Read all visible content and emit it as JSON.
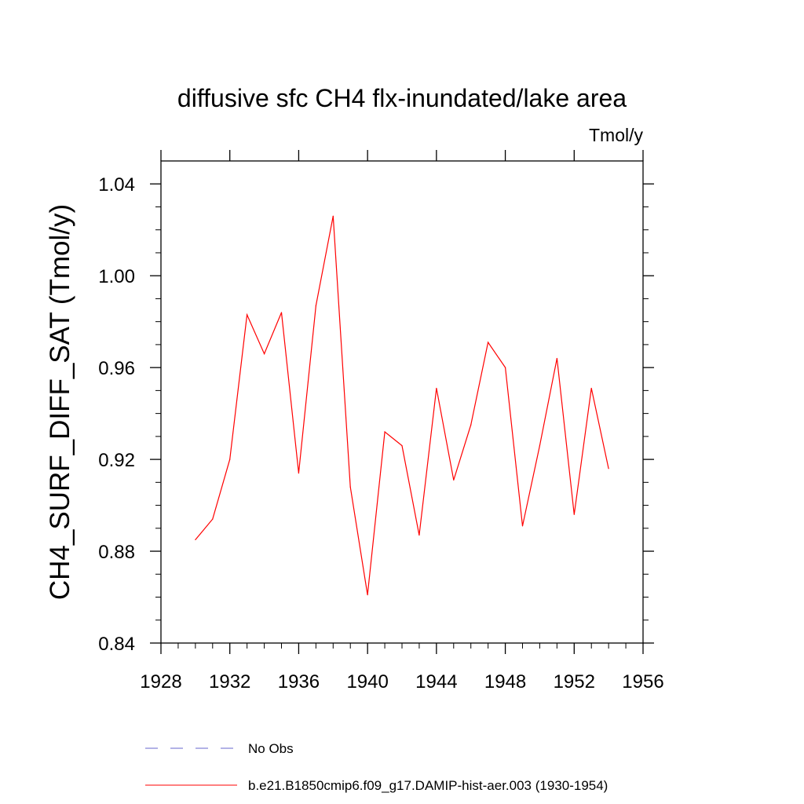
{
  "chart_data": {
    "type": "line",
    "title": "diffusive sfc CH4 flx-inundated/lake area",
    "units_label": "Tmol/y",
    "ylabel": "CH4_SURF_DIFF_SAT  (Tmol/y)",
    "xlabel": "",
    "xlim": [
      1928,
      1956
    ],
    "ylim": [
      0.84,
      1.05
    ],
    "x_ticks": [
      1928,
      1932,
      1936,
      1940,
      1944,
      1948,
      1952,
      1956
    ],
    "y_ticks": [
      0.84,
      0.88,
      0.92,
      0.96,
      1.0,
      1.04
    ],
    "x_tick_labels": [
      "1928",
      "1932",
      "1936",
      "1940",
      "1944",
      "1948",
      "1952",
      "1956"
    ],
    "y_tick_labels": [
      "0.84",
      "0.88",
      "0.92",
      "0.96",
      "1.00",
      "1.04"
    ],
    "grid": false,
    "legend_position": "bottom",
    "series": [
      {
        "name": "b.e21.B1850cmip6.f09_g17.DAMIP-hist-aer.003 (1930-1954)",
        "color": "#ff0000",
        "dash": "solid",
        "x": [
          1930,
          1931,
          1932,
          1933,
          1934,
          1935,
          1936,
          1937,
          1938,
          1939,
          1940,
          1941,
          1942,
          1943,
          1944,
          1945,
          1946,
          1947,
          1948,
          1949,
          1950,
          1951,
          1952,
          1953,
          1954
        ],
        "y": [
          0.885,
          0.894,
          0.92,
          0.983,
          0.966,
          0.984,
          0.914,
          0.987,
          1.026,
          0.908,
          0.861,
          0.932,
          0.926,
          0.887,
          0.951,
          0.911,
          0.935,
          0.971,
          0.96,
          0.891,
          0.926,
          0.964,
          0.896,
          0.951,
          0.916
        ]
      }
    ],
    "legend": [
      {
        "label": "No Obs",
        "color": "#6666cc",
        "dash": "dashed"
      },
      {
        "label": "b.e21.B1850cmip6.f09_g17.DAMIP-hist-aer.003 (1930-1954)",
        "color": "#ff0000",
        "dash": "solid"
      }
    ]
  }
}
